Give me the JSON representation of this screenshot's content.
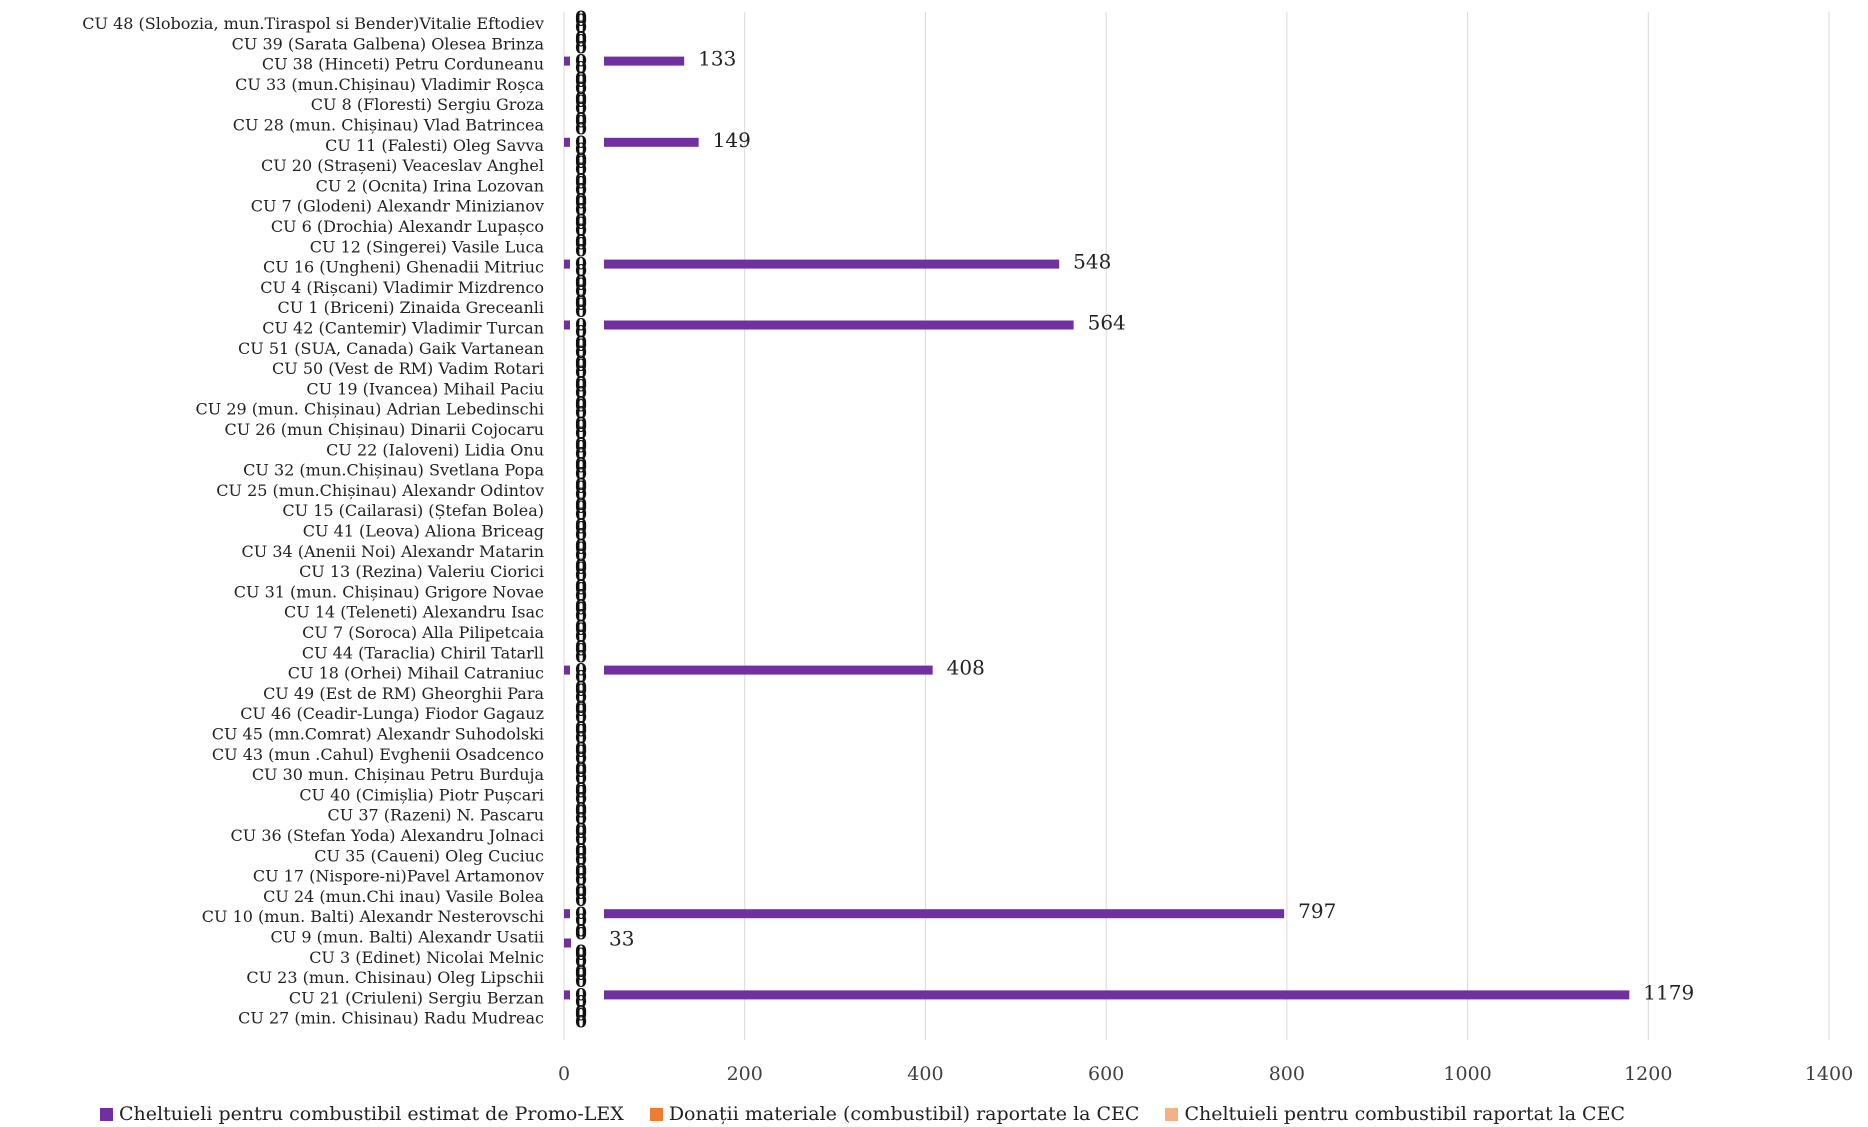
{
  "chart_data": {
    "type": "bar",
    "orientation": "horizontal",
    "xlim": [
      0,
      1400
    ],
    "x_ticks": [
      "0",
      "200",
      "400",
      "600",
      "800",
      "1000",
      "1200",
      "1400"
    ],
    "grid": "vertical",
    "legend_position": "bottom",
    "categories": [
      "CU 48 (Slobozia, mun.Tiraspol si Bender)Vitalie Eftodiev",
      "CU 39 (Sarata Galbena) Olesea Brinza",
      "CU 38 (Hinceti) Petru Corduneanu",
      "CU 33 (mun.Chișinau) Vladimir Roșca",
      "CU 8 (Floresti) Sergiu Groza",
      "CU 28  (mun. Chișinau) Vlad Batrincea",
      "CU 11 (Falesti) Oleg Savva",
      "CU 20 (Strașeni) Veaceslav Anghel",
      "CU 2 (Ocnita) Irina Lozovan",
      "CU 7 (Glodeni) Alexandr Minizianov",
      "CU 6 (Drochia) Alexandr Lupașco",
      "CU 12 (Singerei) Vasile Luca",
      "CU 16 (Ungheni) Ghenadii Mitriuc",
      "CU 4 (Rișcani) Vladimir Mizdrenco",
      "CU 1 (Briceni) Zinaida Greceanli",
      "CU 42 (Cantemir) Vladimir Turcan",
      "CU 51 (SUA, Canada) Gaik Vartanean",
      "CU 50 (Vest de RM) Vadim Rotari",
      "CU 19 (Ivancea) Mihail Paciu",
      "CU 29 (mun. Chișinau) Adrian Lebedinschi",
      "CU 26 (mun Chișinau) Dinarii Cojocaru",
      "CU 22 (Ialoveni) Lidia Onu",
      "CU 32 (mun.Chișinau) Svetlana Popa",
      "CU 25 (mun.Chișinau) Alexandr Odintov",
      "CU 15 (Cailarasi) (Ștefan Bolea)",
      "CU 41 (Leova) Aliona Briceag",
      "CU 34 (Anenii Noi) Alexandr Matarin",
      "CU 13 (Rezina) Valeriu Ciorici",
      "CU 31 (mun. Chișinau) Grigore Novae",
      "CU 14 (Teleneti) Alexandru Isac",
      "CU 7 (Soroca) Alla Pilipetcaia",
      "CU 44 (Taraclia) Chiril Tatarll",
      "CU 18 (Orhei) Mihail Catraniuc",
      "CU 49 (Est de RM) Gheorghii Para",
      "CU 46 (Ceadir-Lunga) Fiodor Gagauz",
      "CU 45 (mn.Comrat) Alexandr Suhodolski",
      "CU 43 (mun .Cahul) Evghenii Osadcenco",
      "CU 30 mun. Chișinau Petru Burduja",
      "CU 40 (Cimișlia) Piotr Pușcari",
      "CU 37 (Razeni) N. Pascaru",
      "CU 36   (Stefan Yoda) Alexandru Jolnaci",
      "CU 35 (Caueni) Oleg Cuciuc",
      "CU 17 (Nispore-ni)Pavel Artamonov",
      "CU 24 (mun.Chi inau) Vasile Bolea",
      "CU 10 (mun. Balti) Alexandr Nesterovschi",
      "CU 9 (mun. Balti) Alexandr Usatii",
      "CU 3 (Edinet) Nicolai Melnic",
      "CU 23 (mun. Chisinau) Oleg Lipschii",
      "CU 21 (Criuleni) Sergiu Berzan",
      "CU 27 (min. Chisinau) Radu Mudreac"
    ],
    "series": [
      {
        "name": "Cheltuieli pentru combustibil estimat de Promo-LEX",
        "color": "#7030a0",
        "values": [
          0,
          0,
          133,
          0,
          0,
          0,
          149,
          0,
          0,
          0,
          0,
          0,
          548,
          0,
          0,
          564,
          0,
          0,
          0,
          0,
          0,
          0,
          0,
          0,
          0,
          0,
          0,
          0,
          0,
          0,
          0,
          0,
          408,
          0,
          0,
          0,
          0,
          0,
          0,
          0,
          0,
          0,
          0,
          0,
          797,
          0,
          0,
          0,
          1179,
          0
        ]
      },
      {
        "name": "Donații materiale (combustibil) raportate la CEC",
        "color": "#ed7d31",
        "values": [
          0,
          0,
          0,
          0,
          0,
          0,
          0,
          0,
          0,
          0,
          0,
          0,
          0,
          0,
          0,
          0,
          0,
          0,
          0,
          0,
          0,
          0,
          0,
          0,
          0,
          0,
          0,
          0,
          0,
          0,
          0,
          0,
          0,
          0,
          0,
          0,
          0,
          0,
          0,
          0,
          0,
          0,
          0,
          0,
          0,
          0,
          0,
          0,
          0,
          0
        ]
      },
      {
        "name": "Cheltuieli pentru combustibil raportat la CEC",
        "color": "#f4b183",
        "values": [
          0,
          0,
          0,
          0,
          0,
          0,
          0,
          0,
          0,
          0,
          0,
          0,
          0,
          0,
          0,
          0,
          0,
          0,
          0,
          0,
          0,
          0,
          0,
          0,
          0,
          0,
          0,
          0,
          0,
          0,
          0,
          0,
          0,
          0,
          0,
          0,
          0,
          0,
          0,
          0,
          0,
          0,
          0,
          0,
          0,
          33,
          0,
          0,
          0,
          0
        ]
      }
    ],
    "title": "",
    "xlabel": "",
    "ylabel": ""
  }
}
